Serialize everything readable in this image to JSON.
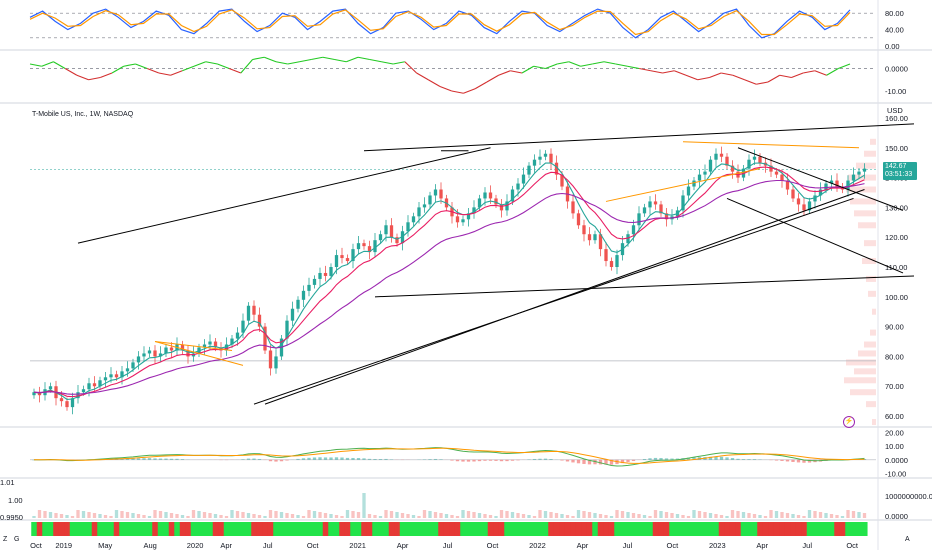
{
  "title": "T-Mobile US, Inc., 1W, NASDAQ",
  "currency": "USD",
  "price_badge": {
    "price": "142.67",
    "countdown": "03:51:33",
    "color": "#26a69a"
  },
  "corner_left": "Z",
  "corner_left2": "G",
  "corner_right": "A",
  "colors": {
    "up": "#26a69a",
    "down": "#ef5350",
    "ema_fast": "#26a69a",
    "ema_mid": "#e91e63",
    "ema_slow": "#9c27b0",
    "trendline": "#000000",
    "orange": "#ff9800",
    "stoch_k": "#2962ff",
    "stoch_d": "#ff9800"
  },
  "chart_data": [
    {
      "type": "line",
      "name": "stochastic",
      "y_ticks": [
        "80.00",
        "40.00",
        "0.00"
      ],
      "ylim": [
        0,
        100
      ],
      "bands": [
        80,
        20
      ],
      "series": [
        {
          "values": [
            70,
            85,
            60,
            40,
            55,
            80,
            90,
            70,
            45,
            60,
            85,
            75,
            40,
            30,
            55,
            85,
            90,
            60,
            35,
            50,
            80,
            70,
            40,
            60,
            85,
            90,
            55,
            30,
            45,
            80,
            85,
            65,
            40,
            55,
            85,
            75,
            45,
            30,
            60,
            85,
            80,
            50,
            35,
            55,
            75,
            90,
            80,
            45,
            20,
            40,
            70,
            85,
            60,
            35,
            55,
            80,
            90,
            50,
            20,
            30,
            60,
            85,
            70,
            40,
            55,
            88
          ]
        },
        {
          "values": [
            65,
            80,
            68,
            48,
            50,
            72,
            86,
            76,
            52,
            55,
            78,
            78,
            50,
            35,
            48,
            78,
            88,
            68,
            42,
            45,
            72,
            74,
            48,
            52,
            78,
            88,
            64,
            38,
            42,
            72,
            84,
            70,
            46,
            50,
            78,
            78,
            52,
            36,
            52,
            78,
            82,
            58,
            40,
            50,
            70,
            85,
            84,
            55,
            28,
            35,
            62,
            80,
            66,
            42,
            50,
            72,
            86,
            60,
            28,
            28,
            52,
            78,
            74,
            48,
            50,
            82
          ]
        }
      ]
    },
    {
      "type": "line",
      "name": "momentum",
      "y_ticks": [
        "0.0000",
        "-10.00"
      ],
      "ylim": [
        -14,
        6
      ],
      "values": [
        2,
        1,
        3,
        0,
        -3,
        -5,
        -4,
        -2,
        1,
        2,
        0,
        -2,
        -3,
        -1,
        1,
        3,
        2,
        0,
        -2,
        4,
        5,
        3,
        2,
        3,
        4,
        5,
        4,
        3,
        5,
        4,
        3,
        2,
        3,
        -2,
        -5,
        -8,
        -10,
        -11,
        -9,
        -6,
        -3,
        -1,
        -2,
        1,
        0,
        2,
        3,
        1,
        2,
        3,
        2,
        1,
        0,
        -1,
        -2,
        -1,
        -3,
        -5,
        -4,
        -2,
        -3,
        -5,
        -7,
        -6,
        -3,
        -4,
        -2,
        -1,
        -3,
        0,
        2
      ]
    },
    {
      "type": "candlestick",
      "name": "price",
      "x_ticks": [
        "Oct",
        "2019",
        "May",
        "Aug",
        "2020",
        "Apr",
        "Jul",
        "Oct",
        "2021",
        "Apr",
        "Jul",
        "Oct",
        "2022",
        "Apr",
        "Jul",
        "Oct",
        "2023",
        "Apr",
        "Jul",
        "Oct"
      ],
      "y_ticks": [
        "160.00",
        "150.00",
        "140.00",
        "130.00",
        "120.00",
        "110.00",
        "100.00",
        "90.00",
        "80.00",
        "70.00",
        "60.00"
      ],
      "ylim": [
        57,
        162
      ],
      "close": [
        68,
        67,
        69,
        70,
        66,
        65,
        63,
        66,
        68,
        69,
        71,
        70,
        72,
        73,
        74,
        73,
        75,
        76,
        78,
        80,
        81,
        82,
        80,
        81,
        83,
        82,
        84,
        82,
        80,
        81,
        83,
        84,
        85,
        83,
        82,
        84,
        86,
        88,
        92,
        97,
        94,
        90,
        82,
        76,
        80,
        86,
        92,
        96,
        99,
        102,
        104,
        106,
        108,
        107,
        110,
        114,
        113,
        112,
        116,
        118,
        117,
        115,
        119,
        121,
        124,
        120,
        118,
        122,
        125,
        127,
        130,
        131,
        134,
        136,
        133,
        130,
        127,
        125,
        126,
        128,
        130,
        133,
        135,
        133,
        131,
        129,
        132,
        136,
        138,
        141,
        144,
        146,
        147,
        148,
        145,
        141,
        137,
        132,
        128,
        124,
        121,
        119,
        121,
        116,
        112,
        110,
        114,
        118,
        121,
        124,
        128,
        130,
        132,
        131,
        128,
        126,
        127,
        129,
        134,
        137,
        139,
        141,
        142,
        146,
        148,
        147,
        144,
        142,
        140,
        143,
        146,
        147,
        145,
        144,
        142,
        141,
        139,
        136,
        133,
        131,
        129,
        132,
        134,
        136,
        138,
        139,
        137,
        136,
        139,
        141,
        142,
        143
      ]
    },
    {
      "type": "bar",
      "name": "macd",
      "y_ticks": [
        "20.00",
        "10.00",
        "0.0000",
        "-10.00"
      ],
      "ylim": [
        -12,
        22
      ]
    },
    {
      "type": "bar",
      "name": "volume",
      "y_ticks": [
        "1000000000.00",
        "0.0000"
      ],
      "left_ticks": [
        "1.01",
        "1.00",
        "0.9950"
      ]
    }
  ]
}
